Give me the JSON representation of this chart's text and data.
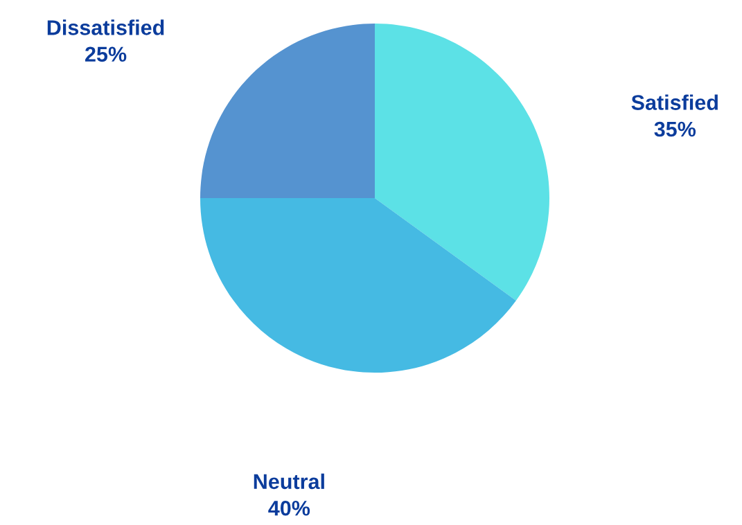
{
  "chart_data": {
    "type": "pie",
    "categories": [
      "Satisfied",
      "Neutral",
      "Dissatisfied"
    ],
    "values": [
      35,
      40,
      25
    ],
    "value_labels": [
      "35%",
      "40%",
      "25%"
    ],
    "colors": [
      "#5ce1e6",
      "#45bae3",
      "#5593d0"
    ],
    "legend": false
  }
}
